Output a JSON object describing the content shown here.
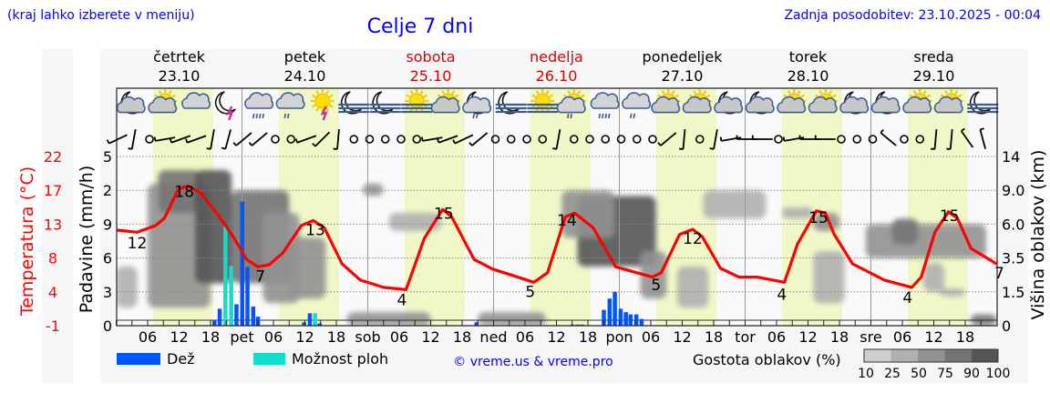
{
  "header": {
    "menu_hint": "(kraj lahko izberete v meniju)",
    "title": "Celje 7 dni",
    "updated": "Zadnja posodobitev: 23.10.2025 - 00:04"
  },
  "colors": {
    "accent_blue": "#0000ff",
    "temp": "#ff0000",
    "rain": "#0055ff",
    "showers": "#11ddcc",
    "daylight": "#f0f8c8",
    "weekend": "#dd0000"
  },
  "days": [
    {
      "name": "četrtek",
      "date": "23.10",
      "weekend": false
    },
    {
      "name": "petek",
      "date": "24.10",
      "weekend": false
    },
    {
      "name": "sobota",
      "date": "25.10",
      "weekend": true
    },
    {
      "name": "nedelja",
      "date": "26.10",
      "weekend": true
    },
    {
      "name": "ponedeljek",
      "date": "27.10",
      "weekend": false
    },
    {
      "name": "torek",
      "date": "28.10",
      "weekend": false
    },
    {
      "name": "sreda",
      "date": "29.10",
      "weekend": false
    }
  ],
  "x_ticks": {
    "hours": [
      "06",
      "12",
      "18"
    ],
    "day_abbr": [
      "",
      "pet",
      "sob",
      "ned",
      "pon",
      "tor",
      "sre"
    ]
  },
  "icons": [
    "moon-cloud",
    "sun-cloud",
    "cloud",
    "moon-thunder",
    "cloud-rain",
    "cloud-light-rain",
    "sun-thunder",
    "moon-fog",
    "moon-fog",
    "sun-fog",
    "sun-cloud",
    "moon-cloud-light-rain",
    "moon-fog",
    "sun-fog",
    "sun-cloud-light-rain",
    "cloud-rain",
    "cloud-light-rain",
    "sun-cloud",
    "sun-cloud",
    "moon-cloud",
    "moon-cloud",
    "sun-cloud",
    "sun-cloud",
    "moon-cloud",
    "moon-cloud",
    "sun-cloud",
    "sun-cloud",
    "moon-fog"
  ],
  "wind": [
    25,
    80,
    "calm",
    10,
    20,
    20,
    80,
    75,
    40,
    40,
    "calm",
    "calm",
    20,
    45,
    85,
    "calm",
    "calm",
    "calm",
    "calm",
    "calm",
    10,
    20,
    25,
    40,
    "calm",
    "calm",
    "calm",
    "calm",
    80,
    "calm",
    "calm",
    "calm",
    "calm",
    "calm",
    "calm",
    40,
    85,
    "calm",
    80,
    10,
    0,
    0,
    "calm",
    10,
    0,
    0,
    "calm",
    "calm",
    "calm",
    -40,
    "calm",
    "calm",
    85,
    85,
    -55,
    -75
  ],
  "chart_data": {
    "type": "line",
    "title": "Celje 7 dni",
    "xlabel": "",
    "ylabel_left_temp": "Temperatura (°C)",
    "ylabel_left_precip": "Padavine (mm/h)",
    "ylabel_right": "Višina oblakov (km)",
    "temp_ticks": [
      "22",
      "17",
      "13",
      "8",
      "4",
      "-1"
    ],
    "precip_ticks": [
      "5",
      "2",
      "9",
      "6",
      "3",
      "0"
    ],
    "cloud_height_ticks": [
      "14",
      "9.0",
      "6.0",
      "3.5",
      "1.5",
      "0"
    ],
    "cloud_height_values": [
      14,
      9,
      6,
      3.5,
      1.5,
      0
    ],
    "temp_range": [
      -1,
      22
    ],
    "precip_range": [
      0,
      15
    ],
    "x_range_hours": [
      0,
      168
    ],
    "temperature": {
      "hours": [
        0,
        4,
        7.5,
        9.2,
        11.8,
        13.6,
        16.2,
        19.7,
        22.3,
        24.9,
        27,
        29.2,
        31.8,
        35.3,
        37.6,
        39.7,
        43.1,
        46.6,
        51,
        55.3,
        58.8,
        62.3,
        64,
        68.3,
        71.8,
        79.7,
        82.3,
        85.7,
        87.5,
        91,
        95.3,
        102.3,
        104,
        107.5,
        110,
        111.8,
        115.3,
        118.8,
        122.3,
        127.5,
        130,
        133.6,
        135.3,
        137,
        140.5,
        146.6,
        151.8,
        153.6,
        156.2,
        158.8,
        160.5,
        163.1,
        168
      ],
      "values": [
        12.0,
        11.7,
        12.6,
        13.6,
        17.5,
        18.0,
        17.0,
        13.8,
        11.1,
        8.0,
        7.0,
        7.3,
        8.9,
        12.6,
        13.3,
        12.3,
        7.4,
        5.2,
        4.2,
        3.9,
        10.9,
        14.8,
        13.8,
        8.0,
        6.7,
        4.9,
        6.2,
        13.8,
        14.3,
        12.3,
        7.0,
        5.6,
        6.2,
        11.4,
        12.1,
        11.1,
        6.8,
        5.6,
        5.6,
        4.9,
        10.1,
        14.6,
        14.3,
        11.4,
        7.4,
        5.2,
        4.2,
        5.6,
        11.7,
        14.5,
        13.6,
        9.5,
        7.4
      ]
    },
    "temp_labels": [
      {
        "hour": 4,
        "text": "12",
        "val": 9.5
      },
      {
        "hour": 13,
        "text": "18",
        "val": 16.5
      },
      {
        "hour": 27.5,
        "text": "7",
        "val": 5.0
      },
      {
        "hour": 38,
        "text": "13",
        "val": 11.3
      },
      {
        "hour": 54.5,
        "text": "4",
        "val": 1.8
      },
      {
        "hour": 62.5,
        "text": "15",
        "val": 13.5
      },
      {
        "hour": 79,
        "text": "5",
        "val": 2.9
      },
      {
        "hour": 86,
        "text": "14",
        "val": 12.6
      },
      {
        "hour": 103,
        "text": "5",
        "val": 3.8
      },
      {
        "hour": 110,
        "text": "12",
        "val": 10.1
      },
      {
        "hour": 127,
        "text": "4",
        "val": 2.5
      },
      {
        "hour": 134,
        "text": "15",
        "val": 13.0
      },
      {
        "hour": 151,
        "text": "4",
        "val": 2.1
      },
      {
        "hour": 159,
        "text": "15",
        "val": 13.2
      },
      {
        "hour": 168.5,
        "text": "7",
        "val": 5.4
      }
    ],
    "precipitation": [
      {
        "hour": 18.7,
        "rain": 0.5,
        "showers": 0
      },
      {
        "hour": 19.7,
        "rain": 1.5,
        "showers": 0.2
      },
      {
        "hour": 20.8,
        "rain": 0,
        "showers": 8.8
      },
      {
        "hour": 21.9,
        "rain": 0,
        "showers": 5.3
      },
      {
        "hour": 22.9,
        "rain": 1.9,
        "showers": 0
      },
      {
        "hour": 24.0,
        "rain": 11.0,
        "showers": 0
      },
      {
        "hour": 25.0,
        "rain": 5.2,
        "showers": 0
      },
      {
        "hour": 26.1,
        "rain": 1.7,
        "showers": 0
      },
      {
        "hour": 27.0,
        "rain": 0.8,
        "showers": 0
      },
      {
        "hour": 35.8,
        "rain": 0.3,
        "showers": 0
      },
      {
        "hour": 36.9,
        "rain": 1.1,
        "showers": 0
      },
      {
        "hour": 37.9,
        "rain": 0,
        "showers": 1.1
      },
      {
        "hour": 38.8,
        "rain": 0.2,
        "showers": 0
      },
      {
        "hour": 68.7,
        "rain": 0.3,
        "showers": 0
      },
      {
        "hour": 87.0,
        "rain": 0.1,
        "showers": 0
      },
      {
        "hour": 88.0,
        "rain": 0.1,
        "showers": 0
      },
      {
        "hour": 88.9,
        "rain": 0.1,
        "showers": 0
      },
      {
        "hour": 93.0,
        "rain": 1.4,
        "showers": 0
      },
      {
        "hour": 94.1,
        "rain": 2.4,
        "showers": 0
      },
      {
        "hour": 95.1,
        "rain": 3.0,
        "showers": 0
      },
      {
        "hour": 96.2,
        "rain": 1.5,
        "showers": 0
      },
      {
        "hour": 97.2,
        "rain": 1.2,
        "showers": 0
      },
      {
        "hour": 98.1,
        "rain": 1.0,
        "showers": 0
      },
      {
        "hour": 99.2,
        "rain": 1.0,
        "showers": 0
      },
      {
        "hour": 100.2,
        "rain": 0.6,
        "showers": 0
      }
    ],
    "cloud_density": [
      {
        "h0": 0,
        "h1": 4,
        "z0": 0.8,
        "z1": 3,
        "density": 25
      },
      {
        "h0": 6,
        "h1": 18,
        "z0": 0.8,
        "z1": 10,
        "density": 50
      },
      {
        "h0": 8,
        "h1": 16,
        "z0": 7,
        "z1": 12,
        "density": 75
      },
      {
        "h0": 15,
        "h1": 22,
        "z0": 2,
        "z1": 12,
        "density": 90
      },
      {
        "h0": 22,
        "h1": 33,
        "z0": 2,
        "z1": 9,
        "density": 75
      },
      {
        "h0": 28,
        "h1": 35,
        "z0": 1,
        "z1": 7,
        "density": 50
      },
      {
        "h0": 33,
        "h1": 40,
        "z0": 1.2,
        "z1": 5,
        "density": 50
      },
      {
        "h0": 47,
        "h1": 51,
        "z0": 8.5,
        "z1": 10,
        "density": 50
      },
      {
        "h0": 52,
        "h1": 62,
        "z0": 5.5,
        "z1": 7,
        "density": 25
      },
      {
        "h0": 44,
        "h1": 60,
        "z0": 0,
        "z1": 0.6,
        "density": 50
      },
      {
        "h0": 69,
        "h1": 82,
        "z0": 0,
        "z1": 0.6,
        "density": 50
      },
      {
        "h0": 88,
        "h1": 103,
        "z0": 3,
        "z1": 8.5,
        "density": 90
      },
      {
        "h0": 85,
        "h1": 95,
        "z0": 5,
        "z1": 9,
        "density": 50
      },
      {
        "h0": 100,
        "h1": 105,
        "z0": 1.2,
        "z1": 4,
        "density": 50
      },
      {
        "h0": 107,
        "h1": 113,
        "z0": 0.8,
        "z1": 3,
        "density": 25
      },
      {
        "h0": 112,
        "h1": 124,
        "z0": 6.5,
        "z1": 9,
        "density": 25
      },
      {
        "h0": 127,
        "h1": 133,
        "z0": 6.5,
        "z1": 7.5,
        "density": 25
      },
      {
        "h0": 133,
        "h1": 138,
        "z0": 5.5,
        "z1": 7,
        "density": 50
      },
      {
        "h0": 133,
        "h1": 139,
        "z0": 1,
        "z1": 4,
        "density": 25
      },
      {
        "h0": 143,
        "h1": 166,
        "z0": 3.5,
        "z1": 6,
        "density": 50
      },
      {
        "h0": 148,
        "h1": 153,
        "z0": 4.5,
        "z1": 6.5,
        "density": 75
      },
      {
        "h0": 154,
        "h1": 158,
        "z0": 1.5,
        "z1": 3.2,
        "density": 25
      },
      {
        "h0": 157,
        "h1": 162,
        "z0": 1.3,
        "z1": 1.7,
        "density": 25
      },
      {
        "h0": 163,
        "h1": 168,
        "z0": 0,
        "z1": 0.5,
        "density": 75
      }
    ],
    "legend": {
      "rain": "Dež",
      "showers": "Možnost ploh",
      "copyright": "© vreme.us & vreme.pro",
      "cloud_title": "Gostota oblakov (%)",
      "cloud_levels": [
        "10",
        "25",
        "50",
        "75",
        "90",
        "100"
      ],
      "cloud_colors": [
        "#cfcfcf",
        "#b0b0b0",
        "#929292",
        "#747474",
        "#555555"
      ]
    }
  }
}
